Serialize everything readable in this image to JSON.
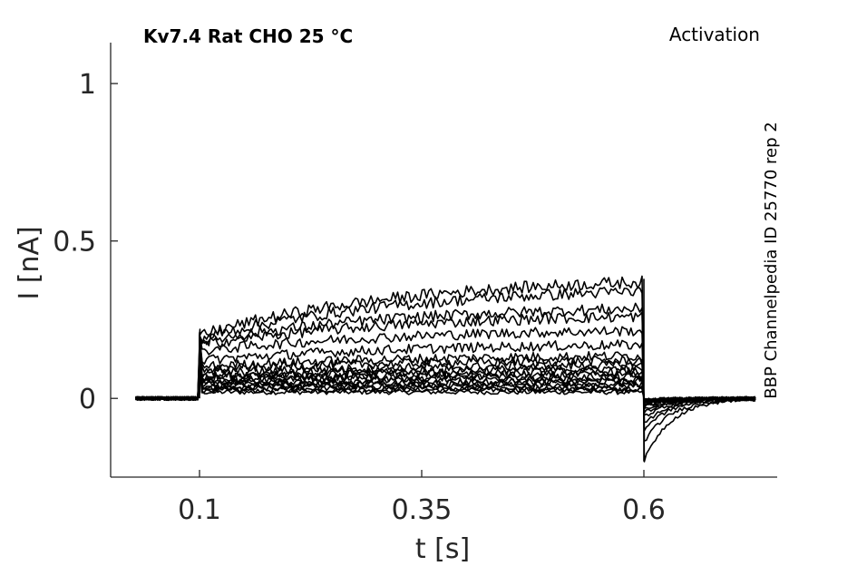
{
  "chart_data": {
    "type": "line",
    "title": "Kv7.4  Rat  CHO  25 °C",
    "subtitle": "Activation",
    "side_label": "BBP Channelpedia ID 25770 rep 2",
    "xlabel": "t [s]",
    "ylabel": "I [nA]",
    "xlim": [
      -0.0,
      0.75
    ],
    "ylim": [
      -0.25,
      1.13
    ],
    "xticks": [
      0.1,
      0.35,
      0.6
    ],
    "xtick_labels": [
      "0.1",
      "0.35",
      "0.6"
    ],
    "yticks": [
      0,
      0.5,
      1
    ],
    "ytick_labels": [
      "0",
      "0.5",
      "1"
    ],
    "grid": false,
    "legend": "none",
    "trace_color": "#000000",
    "protocol": {
      "t_start": 0.028,
      "step_on": 0.1,
      "step_off": 0.6,
      "t_end": 0.727
    },
    "series": [
      {
        "plateau": 0.02,
        "final": 0.02,
        "tail": -0.005
      },
      {
        "plateau": 0.025,
        "final": 0.028,
        "tail": -0.005
      },
      {
        "plateau": 0.03,
        "final": 0.033,
        "tail": -0.006
      },
      {
        "plateau": 0.035,
        "final": 0.04,
        "tail": -0.007
      },
      {
        "plateau": 0.04,
        "final": 0.046,
        "tail": -0.008
      },
      {
        "plateau": 0.045,
        "final": 0.053,
        "tail": -0.009
      },
      {
        "plateau": 0.05,
        "final": 0.06,
        "tail": -0.01
      },
      {
        "plateau": 0.055,
        "final": 0.068,
        "tail": -0.012
      },
      {
        "plateau": 0.06,
        "final": 0.075,
        "tail": -0.013
      },
      {
        "plateau": 0.065,
        "final": 0.085,
        "tail": -0.015
      },
      {
        "plateau": 0.07,
        "final": 0.095,
        "tail": -0.018
      },
      {
        "plateau": 0.08,
        "final": 0.105,
        "tail": -0.022
      },
      {
        "plateau": 0.09,
        "final": 0.12,
        "tail": -0.028
      },
      {
        "plateau": 0.1,
        "final": 0.135,
        "tail": -0.035
      },
      {
        "plateau": 0.12,
        "final": 0.17,
        "tail": -0.045
      },
      {
        "plateau": 0.15,
        "final": 0.215,
        "tail": -0.06
      },
      {
        "plateau": 0.17,
        "final": 0.26,
        "tail": -0.08
      },
      {
        "plateau": 0.18,
        "final": 0.285,
        "tail": -0.1
      },
      {
        "plateau": 0.19,
        "final": 0.34,
        "tail": -0.14
      },
      {
        "plateau": 0.2,
        "final": 0.37,
        "tail": -0.2
      }
    ]
  }
}
